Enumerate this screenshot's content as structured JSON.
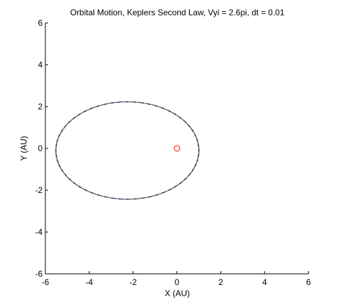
{
  "chart_data": {
    "type": "scatter",
    "title": "Orbital Motion, Keplers Second Law, Vyi = 2.6pi, dt = 0.01",
    "xlabel": "X (AU)",
    "ylabel": "Y (AU)",
    "xlim": [
      -6,
      6
    ],
    "ylim": [
      -6,
      6
    ],
    "x_ticks": [
      -6,
      -4,
      -2,
      0,
      2,
      4,
      6
    ],
    "y_ticks": [
      -6,
      -4,
      -2,
      0,
      2,
      4,
      6
    ],
    "x_tick_labels": [
      "-6",
      "-4",
      "-2",
      "0",
      "2",
      "4",
      "6"
    ],
    "y_tick_labels": [
      "-6",
      "-4",
      "-2",
      "0",
      "2",
      "4",
      "6"
    ],
    "grid": false,
    "orbit": {
      "shape": "ellipse",
      "center": [
        -2.26,
        -0.1
      ],
      "semi_axis_x": 3.26,
      "semi_axis_y": 2.33,
      "marker_colors": [
        "#0000ff",
        "#008000",
        "#ff0000",
        "#00bfbf",
        "#bf00bf",
        "#bfbf00",
        "#404040"
      ]
    },
    "sun": {
      "position": [
        0,
        0
      ],
      "marker": "circle",
      "color": "#ff0000"
    }
  }
}
